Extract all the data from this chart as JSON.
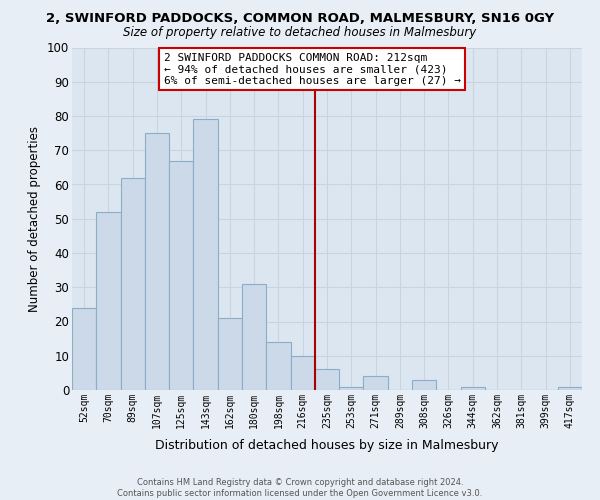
{
  "title": "2, SWINFORD PADDOCKS, COMMON ROAD, MALMESBURY, SN16 0GY",
  "subtitle": "Size of property relative to detached houses in Malmesbury",
  "xlabel": "Distribution of detached houses by size in Malmesbury",
  "ylabel": "Number of detached properties",
  "bar_color": "#ccd9e8",
  "bar_edge_color": "#8aaec8",
  "bin_labels": [
    "52sqm",
    "70sqm",
    "89sqm",
    "107sqm",
    "125sqm",
    "143sqm",
    "162sqm",
    "180sqm",
    "198sqm",
    "216sqm",
    "235sqm",
    "253sqm",
    "271sqm",
    "289sqm",
    "308sqm",
    "326sqm",
    "344sqm",
    "362sqm",
    "381sqm",
    "399sqm",
    "417sqm"
  ],
  "bar_heights": [
    24,
    52,
    62,
    75,
    67,
    79,
    21,
    31,
    14,
    10,
    6,
    1,
    4,
    0,
    3,
    0,
    1,
    0,
    0,
    0,
    1
  ],
  "ylim": [
    0,
    100
  ],
  "yticks": [
    0,
    10,
    20,
    30,
    40,
    50,
    60,
    70,
    80,
    90,
    100
  ],
  "vline_x_index": 9,
  "vline_color": "#aa0000",
  "annotation_line1": "2 SWINFORD PADDOCKS COMMON ROAD: 212sqm",
  "annotation_line2": "← 94% of detached houses are smaller (423)",
  "annotation_line3": "6% of semi-detached houses are larger (27) →",
  "footer1": "Contains HM Land Registry data © Crown copyright and database right 2024.",
  "footer2": "Contains public sector information licensed under the Open Government Licence v3.0.",
  "background_color": "#e8eef5",
  "grid_color": "#c8d4e0",
  "plot_bg_color": "#dce6f0"
}
